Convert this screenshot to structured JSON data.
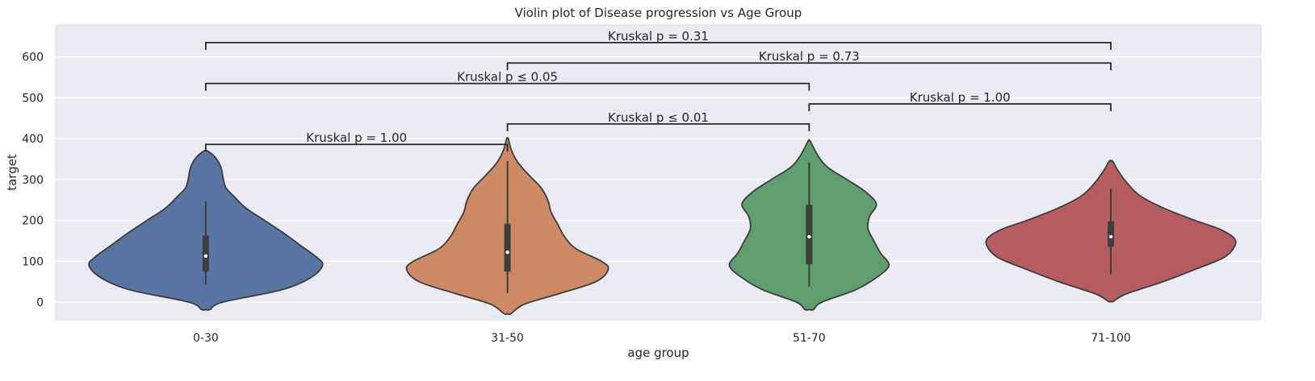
{
  "chart_data": {
    "type": "violin",
    "title": "Violin plot of Disease progression vs Age Group",
    "xlabel": "age group",
    "ylabel": "target",
    "categories": [
      "0-30",
      "31-50",
      "51-70",
      "71-100"
    ],
    "ylim": [
      -45,
      680
    ],
    "yticks": [
      0,
      100,
      200,
      300,
      400,
      500,
      600
    ],
    "grid": true,
    "colors": {
      "background": "#eaeaf2",
      "grid": "#ffffff",
      "violins": [
        "#5875a4",
        "#cc8963",
        "#5f9e6e",
        "#b55d60"
      ],
      "edge": "#3d3d3d"
    },
    "violins": [
      {
        "category": "0-30",
        "extent": [
          -18,
          370
        ],
        "box": {
          "q1": 75,
          "median": 113,
          "q3": 163,
          "whisker_low": 43,
          "whisker_high": 247
        },
        "density": [
          [
            -18,
            5
          ],
          [
            0,
            20
          ],
          [
            30,
            90
          ],
          [
            60,
            125
          ],
          [
            90,
            139
          ],
          [
            110,
            132
          ],
          [
            140,
            112
          ],
          [
            170,
            92
          ],
          [
            200,
            70
          ],
          [
            230,
            48
          ],
          [
            260,
            33
          ],
          [
            280,
            24
          ],
          [
            300,
            21
          ],
          [
            330,
            18
          ],
          [
            355,
            11
          ],
          [
            370,
            2
          ]
        ]
      },
      {
        "category": "31-50",
        "extent": [
          -28,
          400
        ],
        "box": {
          "q1": 75,
          "median": 122,
          "q3": 192,
          "whisker_low": 22,
          "whisker_high": 345
        },
        "density": [
          [
            -28,
            4
          ],
          [
            -5,
            20
          ],
          [
            20,
            60
          ],
          [
            50,
            105
          ],
          [
            80,
            120
          ],
          [
            100,
            112
          ],
          [
            130,
            82
          ],
          [
            160,
            68
          ],
          [
            190,
            60
          ],
          [
            220,
            52
          ],
          [
            250,
            48
          ],
          [
            280,
            40
          ],
          [
            310,
            26
          ],
          [
            340,
            13
          ],
          [
            370,
            5
          ],
          [
            400,
            1
          ]
        ]
      },
      {
        "category": "51-70",
        "extent": [
          -18,
          395
        ],
        "box": {
          "q1": 93,
          "median": 160,
          "q3": 238,
          "whisker_low": 38,
          "whisker_high": 342
        },
        "density": [
          [
            -18,
            5
          ],
          [
            0,
            15
          ],
          [
            30,
            55
          ],
          [
            60,
            80
          ],
          [
            90,
            95
          ],
          [
            120,
            85
          ],
          [
            150,
            77
          ],
          [
            180,
            70
          ],
          [
            210,
            72
          ],
          [
            240,
            80
          ],
          [
            270,
            67
          ],
          [
            300,
            45
          ],
          [
            330,
            22
          ],
          [
            360,
            10
          ],
          [
            395,
            1
          ]
        ]
      },
      {
        "category": "71-100",
        "extent": [
          2,
          345
        ],
        "box": {
          "q1": 136,
          "median": 160,
          "q3": 198,
          "whisker_low": 68,
          "whisker_high": 277
        },
        "density": [
          [
            2,
            3
          ],
          [
            20,
            18
          ],
          [
            50,
            62
          ],
          [
            80,
            100
          ],
          [
            110,
            135
          ],
          [
            140,
            148
          ],
          [
            160,
            145
          ],
          [
            180,
            128
          ],
          [
            200,
            100
          ],
          [
            230,
            63
          ],
          [
            260,
            35
          ],
          [
            290,
            20
          ],
          [
            320,
            9
          ],
          [
            345,
            2
          ]
        ]
      }
    ],
    "annotations": [
      {
        "from": 0,
        "to": 1,
        "y": 386,
        "label": "Kruskal p = 1.00"
      },
      {
        "from": 1,
        "to": 2,
        "y": 436,
        "label": "Kruskal p ≤ 0.01"
      },
      {
        "from": 2,
        "to": 3,
        "y": 485,
        "label": "Kruskal p = 1.00"
      },
      {
        "from": 0,
        "to": 2,
        "y": 535,
        "label": "Kruskal p ≤ 0.05"
      },
      {
        "from": 1,
        "to": 3,
        "y": 585,
        "label": "Kruskal p = 0.73"
      },
      {
        "from": 0,
        "to": 3,
        "y": 635,
        "label": "Kruskal p = 0.31"
      }
    ]
  }
}
